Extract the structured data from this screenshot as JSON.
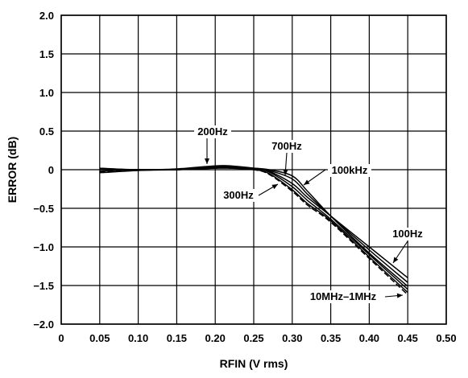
{
  "chart_data": {
    "type": "line",
    "xlabel": "RFIN (V rms)",
    "ylabel": "ERROR (dB)",
    "xlim": [
      0,
      0.5
    ],
    "ylim": [
      -2.0,
      2.0
    ],
    "grid": true,
    "x_ticks": [
      "0",
      "0.05",
      "0.10",
      "0.15",
      "0.20",
      "0.25",
      "0.30",
      "0.35",
      "0.40",
      "0.45",
      "0.50"
    ],
    "y_ticks": [
      "2.0",
      "1.5",
      "1.0",
      "0.5",
      "0",
      "−0.5",
      "−1.0",
      "−1.5",
      "−2.0"
    ],
    "annotations": [
      "200Hz",
      "700Hz",
      "100kHz",
      "300Hz",
      "100Hz",
      "10MHz–1MHz"
    ],
    "series": [
      {
        "x": [
          0.05,
          0.1,
          0.15,
          0.2,
          0.22,
          0.25,
          0.27,
          0.3,
          0.32,
          0.35,
          0.4,
          0.45
        ],
        "y": [
          -0.02,
          0.0,
          0.0,
          0.03,
          0.03,
          0.01,
          -0.02,
          -0.18,
          -0.36,
          -0.6,
          -1.0,
          -1.4
        ]
      },
      {
        "x": [
          0.05,
          0.1,
          0.15,
          0.2,
          0.22,
          0.25,
          0.27,
          0.3,
          0.32,
          0.35,
          0.4,
          0.45
        ],
        "y": [
          0.02,
          0.0,
          0.01,
          0.05,
          0.05,
          0.02,
          -0.01,
          -0.12,
          -0.32,
          -0.6,
          -1.04,
          -1.46
        ]
      },
      {
        "x": [
          0.05,
          0.1,
          0.15,
          0.2,
          0.22,
          0.25,
          0.27,
          0.3,
          0.32,
          0.35,
          0.4,
          0.45
        ],
        "y": [
          0.01,
          0.0,
          0.0,
          0.04,
          0.04,
          0.02,
          0.0,
          -0.08,
          -0.28,
          -0.6,
          -1.08,
          -1.51
        ]
      },
      {
        "x": [
          0.05,
          0.1,
          0.15,
          0.2,
          0.22,
          0.25,
          0.27,
          0.3,
          0.32,
          0.35,
          0.4,
          0.45
        ],
        "y": [
          0.0,
          0.0,
          0.0,
          0.03,
          0.03,
          0.01,
          -0.03,
          -0.22,
          -0.4,
          -0.64,
          -1.1,
          -1.55
        ]
      },
      {
        "x": [
          0.05,
          0.1,
          0.15,
          0.2,
          0.22,
          0.25,
          0.27,
          0.3,
          0.32,
          0.35,
          0.4,
          0.45
        ],
        "y": [
          -0.04,
          -0.01,
          0.0,
          0.02,
          0.02,
          0.0,
          -0.05,
          -0.26,
          -0.44,
          -0.66,
          -1.13,
          -1.59
        ]
      },
      {
        "x": [
          0.05,
          0.1,
          0.15,
          0.2,
          0.22,
          0.25,
          0.27,
          0.3,
          0.32,
          0.35,
          0.4,
          0.45
        ],
        "y": [
          -0.03,
          0.0,
          0.0,
          0.02,
          0.02,
          0.0,
          -0.06,
          -0.28,
          -0.46,
          -0.68,
          -1.15,
          -1.62
        ]
      }
    ]
  }
}
